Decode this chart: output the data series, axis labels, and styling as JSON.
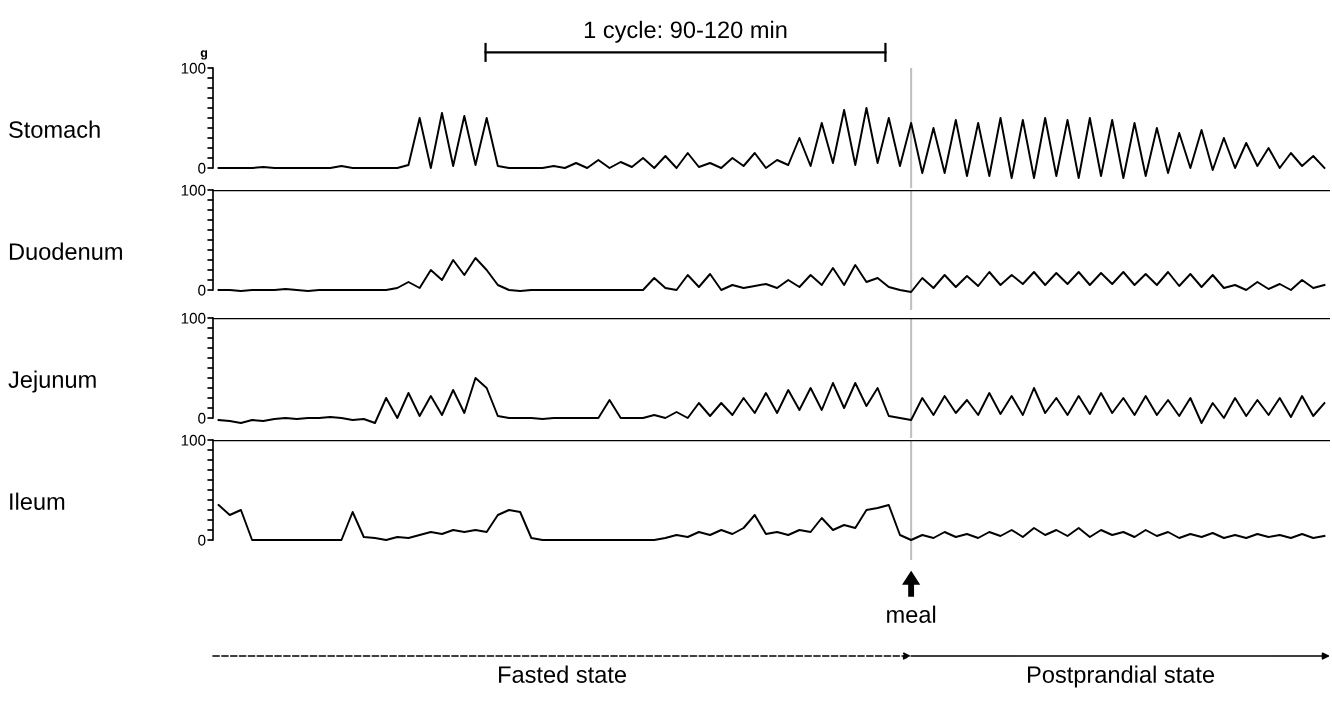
{
  "chart_data": [
    {
      "type": "line",
      "ylabel": "Stomach",
      "tick_labels": "y",
      "ylim": [
        -20,
        100
      ],
      "yticks": [
        0,
        {
          "value": 10,
          "label": null
        },
        {
          "value": 20,
          "label": null
        },
        {
          "value": 30,
          "label": null
        },
        {
          "value": 40,
          "label": null
        },
        {
          "value": 50,
          "label": null
        },
        {
          "value": 60,
          "label": null
        },
        {
          "value": 70,
          "label": null
        },
        {
          "value": 80,
          "label": null
        },
        {
          "value": 90,
          "label": null
        },
        100
      ],
      "categories": [
        null,
        null,
        null,
        null,
        null,
        null,
        null,
        null,
        null,
        null,
        null,
        null,
        null,
        null,
        null,
        null,
        null,
        null,
        null,
        null,
        null,
        null,
        null,
        null,
        null,
        null,
        null,
        null,
        null,
        null,
        null,
        null,
        null,
        null,
        null,
        null,
        null,
        null,
        null,
        null,
        null,
        null,
        null,
        null,
        null,
        null,
        null,
        null,
        null,
        null,
        null,
        null,
        null,
        null,
        null,
        null,
        null,
        null,
        null,
        null,
        null,
        null,
        null,
        null,
        null,
        null,
        null,
        null,
        null,
        null,
        null,
        null,
        null,
        null,
        null,
        null,
        null,
        null,
        null,
        null,
        null,
        null,
        null,
        null,
        null,
        null,
        null,
        null,
        null,
        null,
        null,
        null,
        null,
        null,
        null,
        null,
        null,
        null,
        null,
        null
      ],
      "series": [
        {
          "color": "#000000",
          "values": [
            0,
            0,
            0,
            0,
            1,
            0,
            0,
            0,
            0,
            0,
            0,
            2,
            0,
            0,
            0,
            0,
            0,
            3,
            50,
            0,
            55,
            2,
            52,
            3,
            50,
            2,
            0,
            0,
            0,
            0,
            2,
            0,
            5,
            0,
            8,
            0,
            6,
            1,
            10,
            0,
            12,
            0,
            15,
            1,
            5,
            0,
            10,
            2,
            15,
            0,
            8,
            3,
            30,
            2,
            45,
            5,
            58,
            3,
            60,
            5,
            50,
            2,
            45,
            -5,
            40,
            -5,
            48,
            -8,
            45,
            -8,
            50,
            -10,
            48,
            -10,
            50,
            -8,
            48,
            -10,
            50,
            -8,
            48,
            -10,
            45,
            -8,
            40,
            -5,
            35,
            0,
            38,
            -2,
            30,
            0,
            25,
            2,
            20,
            0,
            15,
            2,
            12,
            0
          ]
        }
      ],
      "annotations": [
        "g",
        "1 cycle: 90-120 min"
      ]
    },
    {
      "type": "line",
      "ylabel": "Duodenum",
      "tick_labels": "y",
      "ylim": [
        -20,
        100
      ],
      "yticks": [
        0,
        {
          "value": 10,
          "label": null
        },
        {
          "value": 20,
          "label": null
        },
        {
          "value": 30,
          "label": null
        },
        {
          "value": 40,
          "label": null
        },
        {
          "value": 50,
          "label": null
        },
        {
          "value": 60,
          "label": null
        },
        {
          "value": 70,
          "label": null
        },
        {
          "value": 80,
          "label": null
        },
        {
          "value": 90,
          "label": null
        },
        100
      ],
      "categories": [
        null,
        null,
        null,
        null,
        null,
        null,
        null,
        null,
        null,
        null,
        null,
        null,
        null,
        null,
        null,
        null,
        null,
        null,
        null,
        null,
        null,
        null,
        null,
        null,
        null,
        null,
        null,
        null,
        null,
        null,
        null,
        null,
        null,
        null,
        null,
        null,
        null,
        null,
        null,
        null,
        null,
        null,
        null,
        null,
        null,
        null,
        null,
        null,
        null,
        null,
        null,
        null,
        null,
        null,
        null,
        null,
        null,
        null,
        null,
        null,
        null,
        null,
        null,
        null,
        null,
        null,
        null,
        null,
        null,
        null,
        null,
        null,
        null,
        null,
        null,
        null,
        null,
        null,
        null,
        null,
        null,
        null,
        null,
        null,
        null,
        null,
        null,
        null,
        null,
        null,
        null,
        null,
        null,
        null,
        null,
        null,
        null,
        null,
        null,
        null
      ],
      "series": [
        {
          "color": "#000000",
          "values": [
            0,
            0,
            -1,
            0,
            0,
            0,
            1,
            0,
            -1,
            0,
            0,
            0,
            0,
            0,
            0,
            0,
            2,
            8,
            2,
            20,
            10,
            30,
            15,
            32,
            20,
            5,
            0,
            -1,
            0,
            0,
            0,
            0,
            0,
            0,
            0,
            0,
            0,
            0,
            0,
            12,
            2,
            0,
            15,
            3,
            16,
            0,
            5,
            2,
            4,
            6,
            2,
            10,
            3,
            15,
            5,
            22,
            5,
            25,
            8,
            12,
            3,
            0,
            -2,
            12,
            2,
            15,
            3,
            14,
            4,
            18,
            5,
            15,
            6,
            18,
            5,
            17,
            6,
            18,
            5,
            17,
            6,
            18,
            5,
            16,
            5,
            18,
            4,
            16,
            3,
            15,
            2,
            5,
            0,
            8,
            1,
            6,
            0,
            10,
            2,
            5
          ]
        }
      ],
      "ref_lines": [
        {
          "axis": "y",
          "value": 100,
          "color": "#000000"
        }
      ]
    },
    {
      "type": "line",
      "ylabel": "Jejunum",
      "tick_labels": "y",
      "ylim": [
        -20,
        100
      ],
      "yticks": [
        0,
        {
          "value": 10,
          "label": null
        },
        {
          "value": 20,
          "label": null
        },
        {
          "value": 30,
          "label": null
        },
        {
          "value": 40,
          "label": null
        },
        {
          "value": 50,
          "label": null
        },
        {
          "value": 60,
          "label": null
        },
        {
          "value": 70,
          "label": null
        },
        {
          "value": 80,
          "label": null
        },
        {
          "value": 90,
          "label": null
        },
        100
      ],
      "categories": [
        null,
        null,
        null,
        null,
        null,
        null,
        null,
        null,
        null,
        null,
        null,
        null,
        null,
        null,
        null,
        null,
        null,
        null,
        null,
        null,
        null,
        null,
        null,
        null,
        null,
        null,
        null,
        null,
        null,
        null,
        null,
        null,
        null,
        null,
        null,
        null,
        null,
        null,
        null,
        null,
        null,
        null,
        null,
        null,
        null,
        null,
        null,
        null,
        null,
        null,
        null,
        null,
        null,
        null,
        null,
        null,
        null,
        null,
        null,
        null,
        null,
        null,
        null,
        null,
        null,
        null,
        null,
        null,
        null,
        null,
        null,
        null,
        null,
        null,
        null,
        null,
        null,
        null,
        null,
        null,
        null,
        null,
        null,
        null,
        null,
        null,
        null,
        null,
        null,
        null,
        null,
        null,
        null,
        null,
        null,
        null,
        null,
        null,
        null,
        null
      ],
      "series": [
        {
          "color": "#000000",
          "values": [
            -2,
            -3,
            -5,
            -2,
            -3,
            -1,
            0,
            -1,
            0,
            0,
            1,
            0,
            -2,
            -1,
            -5,
            20,
            0,
            25,
            2,
            22,
            3,
            28,
            5,
            40,
            30,
            2,
            0,
            0,
            0,
            -1,
            0,
            0,
            0,
            0,
            0,
            18,
            0,
            0,
            0,
            3,
            0,
            6,
            0,
            15,
            2,
            15,
            3,
            20,
            5,
            25,
            5,
            28,
            8,
            30,
            8,
            35,
            10,
            35,
            12,
            30,
            2,
            0,
            -2,
            20,
            3,
            22,
            5,
            18,
            3,
            25,
            4,
            22,
            3,
            30,
            5,
            20,
            3,
            22,
            4,
            25,
            5,
            20,
            3,
            22,
            3,
            18,
            2,
            20,
            -5,
            15,
            0,
            20,
            2,
            18,
            3,
            20,
            1,
            22,
            2,
            15
          ]
        }
      ],
      "ref_lines": [
        {
          "axis": "y",
          "value": 100,
          "color": "#000000"
        }
      ]
    },
    {
      "type": "line",
      "ylabel": "Ileum",
      "tick_labels": "y",
      "ylim": [
        -20,
        100
      ],
      "yticks": [
        0,
        {
          "value": 10,
          "label": null
        },
        {
          "value": 20,
          "label": null
        },
        {
          "value": 30,
          "label": null
        },
        {
          "value": 40,
          "label": null
        },
        {
          "value": 50,
          "label": null
        },
        {
          "value": 60,
          "label": null
        },
        {
          "value": 70,
          "label": null
        },
        {
          "value": 80,
          "label": null
        },
        {
          "value": 90,
          "label": null
        },
        100
      ],
      "categories": [
        null,
        null,
        null,
        null,
        null,
        null,
        null,
        null,
        null,
        null,
        null,
        null,
        null,
        null,
        null,
        null,
        null,
        null,
        null,
        null,
        null,
        null,
        null,
        null,
        null,
        null,
        null,
        null,
        null,
        null,
        null,
        null,
        null,
        null,
        null,
        null,
        null,
        null,
        null,
        null,
        null,
        null,
        null,
        null,
        null,
        null,
        null,
        null,
        null,
        null,
        null,
        null,
        null,
        null,
        null,
        null,
        null,
        null,
        null,
        null,
        null,
        null,
        null,
        null,
        null,
        null,
        null,
        null,
        null,
        null,
        null,
        null,
        null,
        null,
        null,
        null,
        null,
        null,
        null,
        null,
        null,
        null,
        null,
        null,
        null,
        null,
        null,
        null,
        null,
        null,
        null,
        null,
        null,
        null,
        null,
        null,
        null,
        null,
        null,
        null
      ],
      "series": [
        {
          "color": "#000000",
          "values": [
            35,
            25,
            30,
            0,
            0,
            0,
            0,
            0,
            0,
            0,
            0,
            0,
            28,
            3,
            2,
            0,
            3,
            2,
            5,
            8,
            6,
            10,
            8,
            10,
            8,
            25,
            30,
            28,
            2,
            0,
            0,
            0,
            0,
            0,
            0,
            0,
            0,
            0,
            0,
            0,
            2,
            5,
            3,
            8,
            5,
            10,
            6,
            12,
            25,
            6,
            8,
            5,
            10,
            8,
            22,
            10,
            15,
            12,
            30,
            32,
            35,
            5,
            0,
            5,
            2,
            8,
            3,
            6,
            2,
            8,
            4,
            10,
            3,
            12,
            5,
            10,
            4,
            12,
            3,
            10,
            5,
            8,
            3,
            10,
            4,
            8,
            2,
            6,
            3,
            7,
            2,
            5,
            2,
            6,
            3,
            5,
            2,
            6,
            2,
            4
          ]
        }
      ],
      "ref_lines": [
        {
          "axis": "y",
          "value": 100,
          "color": "#000000"
        }
      ],
      "annotations": [
        "meal",
        "Fasted state",
        "Postprandial state"
      ]
    }
  ]
}
